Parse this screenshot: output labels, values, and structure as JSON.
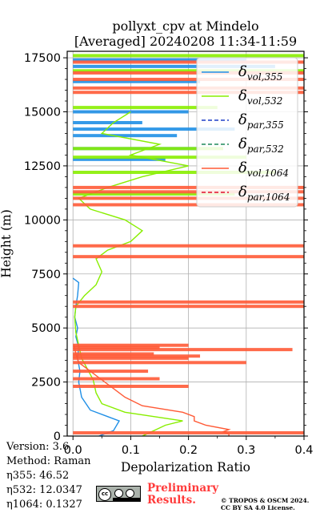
{
  "title_line1": "pollyxt_cpv at Mindelo",
  "title_line2": "[Averaged] 20240208 11:34-11:59",
  "meta": {
    "version": "Version: 3.6",
    "method": "Method: Raman",
    "eta355": "η355:  46.52",
    "eta532": "η532: 12.0347",
    "eta1064": "η1064: 0.1327"
  },
  "preliminary": [
    "Preliminary",
    "Results."
  ],
  "copyright": [
    "© TROPOS & OSCM 2024.",
    "CC BY SA 4.0 License."
  ],
  "license_badge_icon": "cc-by-sa-icon",
  "chart_data": {
    "type": "line",
    "title": "pollyxt_cpv at Mindelo [Averaged] 20240208 11:34-11:59",
    "xlabel": "Depolarization Ratio",
    "ylabel": "Height (m)",
    "xlim": [
      -0.01,
      0.4
    ],
    "ylim": [
      0,
      17800
    ],
    "xticks": [
      0.0,
      0.1,
      0.2,
      0.3,
      0.4
    ],
    "xtick_labels": [
      "0.0",
      "0.1",
      "0.2",
      "0.3",
      "0.4"
    ],
    "yticks": [
      0,
      2500,
      5000,
      7500,
      10000,
      12500,
      15000,
      17500
    ],
    "ytick_labels": [
      "0",
      "2500",
      "5000",
      "7500",
      "10000",
      "12500",
      "15000",
      "17500"
    ],
    "grid": true,
    "legend_position": "top-right",
    "series": [
      {
        "name": "δvol,355",
        "color": "#1f8fe6",
        "style": "solid",
        "points": [
          [
            0.045,
            0
          ],
          [
            0.07,
            250
          ],
          [
            0.08,
            700
          ],
          [
            0.06,
            900
          ],
          [
            0.03,
            1200
          ],
          [
            0.015,
            1800
          ],
          [
            0.01,
            2500
          ],
          [
            0.012,
            3000
          ],
          [
            0.008,
            3600
          ],
          [
            0.01,
            4100
          ],
          [
            0.005,
            4600
          ],
          [
            0.008,
            5000
          ],
          [
            0.003,
            5500
          ],
          [
            0.005,
            6000
          ],
          [
            0.008,
            6500
          ],
          [
            0.01,
            7100
          ],
          [
            0.0,
            7300
          ]
        ],
        "bursts": [
          [
            12800,
            0.16
          ],
          [
            13300,
            0.22
          ],
          [
            13900,
            0.18
          ],
          [
            14200,
            0.28
          ],
          [
            14500,
            0.12
          ],
          [
            15000,
            0.2
          ],
          [
            16400,
            0.22
          ],
          [
            17100,
            0.35
          ],
          [
            17400,
            0.3
          ]
        ]
      },
      {
        "name": "δvol,532",
        "color": "#88ee00",
        "style": "solid",
        "points": [
          [
            0.12,
            0
          ],
          [
            0.14,
            250
          ],
          [
            0.16,
            500
          ],
          [
            0.19,
            700
          ],
          [
            0.14,
            900
          ],
          [
            0.09,
            1100
          ],
          [
            0.05,
            1500
          ],
          [
            0.04,
            2000
          ],
          [
            0.035,
            2600
          ],
          [
            0.025,
            3100
          ],
          [
            0.015,
            3600
          ],
          [
            0.01,
            4200
          ],
          [
            0.005,
            4800
          ],
          [
            0.003,
            5500
          ],
          [
            0.005,
            6000
          ],
          [
            0.02,
            6500
          ],
          [
            0.04,
            7000
          ],
          [
            0.05,
            7600
          ],
          [
            0.04,
            8200
          ],
          [
            0.06,
            8600
          ],
          [
            0.1,
            9000
          ],
          [
            0.12,
            9500
          ],
          [
            0.09,
            10000
          ],
          [
            0.03,
            10500
          ],
          [
            0.01,
            11000
          ],
          [
            0.06,
            11500
          ],
          [
            0.12,
            12000
          ],
          [
            0.2,
            12500
          ],
          [
            0.1,
            13000
          ],
          [
            0.15,
            13500
          ],
          [
            0.05,
            14000
          ],
          [
            0.07,
            14500
          ],
          [
            0.1,
            15000
          ]
        ],
        "bursts": [
          [
            11200,
            0.28
          ],
          [
            12200,
            0.35
          ],
          [
            12900,
            0.3
          ],
          [
            13300,
            0.26
          ],
          [
            15200,
            0.25
          ],
          [
            16900,
            0.4
          ],
          [
            17600,
            0.4
          ]
        ]
      },
      {
        "name": "δpar,355",
        "color": "#1f3fc9",
        "style": "dashed",
        "points": []
      },
      {
        "name": "δpar,532",
        "color": "#1f8a5a",
        "style": "dashed",
        "points": []
      },
      {
        "name": "δvol,1064",
        "color": "#ff5a36",
        "style": "solid",
        "points": [
          [
            0.27,
            0
          ],
          [
            0.27,
            100
          ],
          [
            0.26,
            200
          ],
          [
            0.27,
            300
          ],
          [
            0.23,
            500
          ],
          [
            0.21,
            700
          ],
          [
            0.21,
            900
          ],
          [
            0.19,
            1100
          ],
          [
            0.12,
            1400
          ],
          [
            0.09,
            1800
          ],
          [
            0.07,
            2200
          ],
          [
            0.05,
            2600
          ],
          [
            0.03,
            3000
          ],
          [
            0.01,
            3400
          ],
          [
            0.005,
            3800
          ],
          [
            0.002,
            4200
          ]
        ],
        "bursts": [
          [
            150,
            0.4
          ],
          [
            2300,
            0.2
          ],
          [
            2650,
            0.15
          ],
          [
            3000,
            0.13
          ],
          [
            3400,
            0.3
          ],
          [
            3600,
            0.2
          ],
          [
            3700,
            0.22
          ],
          [
            3800,
            0.14
          ],
          [
            4000,
            0.38
          ],
          [
            4100,
            0.15
          ],
          [
            4200,
            0.2
          ],
          [
            6000,
            0.4
          ],
          [
            6200,
            0.4
          ],
          [
            8300,
            0.4
          ],
          [
            8800,
            0.4
          ],
          [
            10700,
            0.4
          ],
          [
            11000,
            0.4
          ],
          [
            11300,
            0.4
          ],
          [
            11500,
            0.4
          ],
          [
            15900,
            0.4
          ],
          [
            16100,
            0.4
          ],
          [
            16500,
            0.4
          ],
          [
            16800,
            0.4
          ],
          [
            17300,
            0.4
          ]
        ]
      },
      {
        "name": "δpar,1064",
        "color": "#e0102a",
        "style": "dashed",
        "points": []
      }
    ]
  }
}
